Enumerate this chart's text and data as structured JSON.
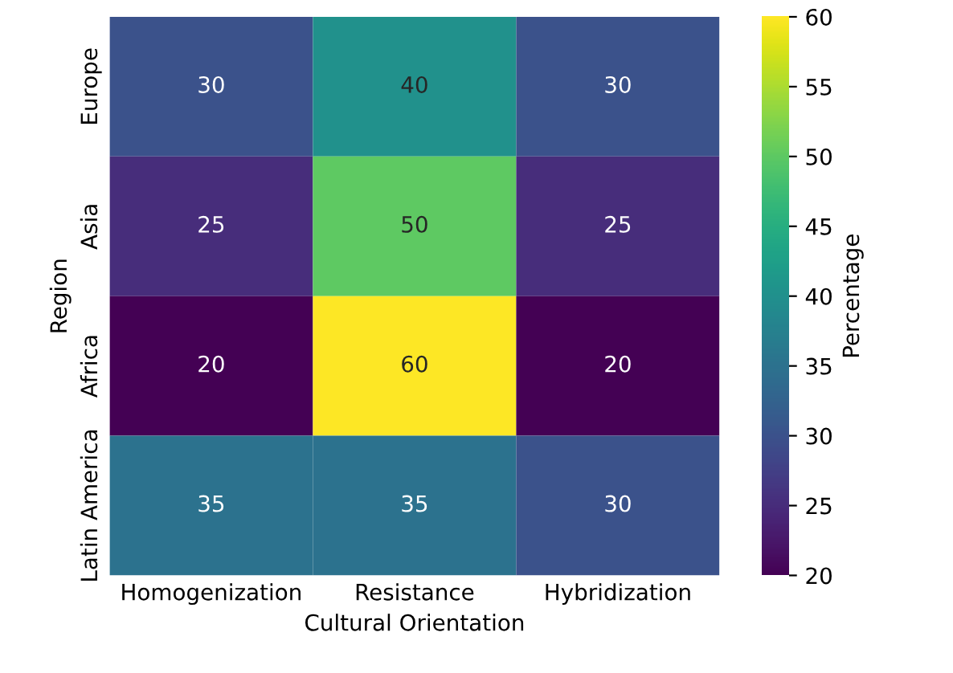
{
  "chart_data": {
    "type": "heatmap",
    "xlabel": "Cultural Orientation",
    "ylabel": "Region",
    "clabel": "Percentage",
    "categories": [
      "Homogenization",
      "Resistance",
      "Hybridization"
    ],
    "y_categories": [
      "Europe",
      "Asia",
      "Africa",
      "Latin America"
    ],
    "cells": [
      [
        30,
        40,
        30
      ],
      [
        25,
        50,
        25
      ],
      [
        20,
        60,
        20
      ],
      [
        35,
        35,
        30
      ]
    ],
    "data_labels": true,
    "clim": [
      20,
      60
    ],
    "cticks": [
      20,
      25,
      30,
      35,
      40,
      45,
      50,
      55,
      60
    ]
  }
}
